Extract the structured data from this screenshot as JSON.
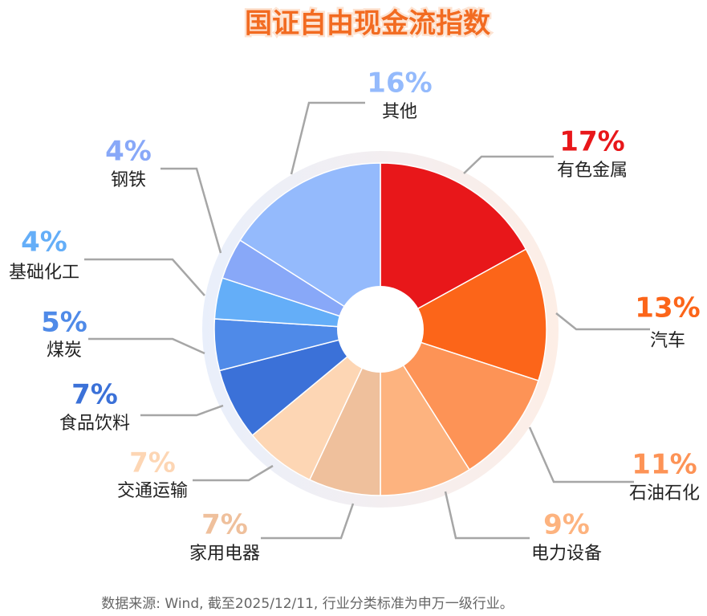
{
  "chart_data": {
    "type": "pie",
    "title": "国证自由现金流指数",
    "categories": [
      "有色金属",
      "汽车",
      "石油石化",
      "电力设备",
      "家用电器",
      "交通运输",
      "食品饮料",
      "煤炭",
      "基础化工",
      "钢铁",
      "其他"
    ],
    "values": [
      17,
      13,
      11,
      9,
      7,
      7,
      7,
      5,
      4,
      4,
      16
    ],
    "value_labels": [
      "17%",
      "13%",
      "11%",
      "9%",
      "7%",
      "7%",
      "7%",
      "5%",
      "4%",
      "4%",
      "16%"
    ],
    "colors": [
      "#e8171a",
      "#fc6519",
      "#fd9356",
      "#fdb37f",
      "#efc09c",
      "#fdd6b4",
      "#3b71d8",
      "#4f8ae8",
      "#64aef8",
      "#88a8f8",
      "#94bafc"
    ],
    "source": "数据来源: Wind, 截至2025/12/11, 行业分类标准为申万一级行业。"
  }
}
